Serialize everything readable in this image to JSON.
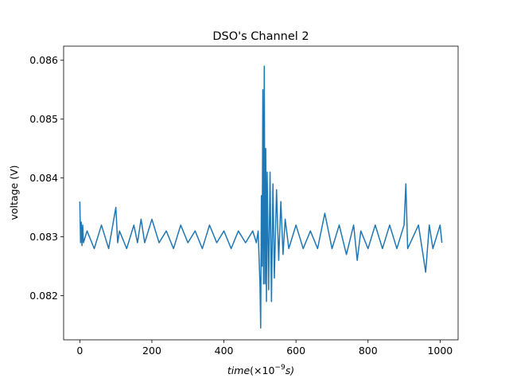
{
  "chart_data": {
    "type": "line",
    "title": "DSO's Channel 2",
    "ylabel": "voltage (V)",
    "xlabel": {
      "main": "time",
      "paren_open": "(×10",
      "exponent": "−9",
      "unit_close": "s)"
    },
    "xlim": [
      -45,
      1050
    ],
    "ylim": [
      0.08125,
      0.08624
    ],
    "x_ticks": [
      {
        "value": 0,
        "label": "0"
      },
      {
        "value": 200,
        "label": "200"
      },
      {
        "value": 400,
        "label": "400"
      },
      {
        "value": 600,
        "label": "600"
      },
      {
        "value": 800,
        "label": "800"
      },
      {
        "value": 1000,
        "label": "1000"
      }
    ],
    "y_ticks": [
      {
        "value": 0.082,
        "label": "0.082"
      },
      {
        "value": 0.083,
        "label": "0.083"
      },
      {
        "value": 0.084,
        "label": "0.084"
      },
      {
        "value": 0.085,
        "label": "0.085"
      },
      {
        "value": 0.086,
        "label": "0.086"
      }
    ],
    "grid": false,
    "series": [
      {
        "color": "#1f77b4",
        "x": [
          0,
          2,
          4,
          6,
          8,
          10,
          20,
          40,
          60,
          80,
          100,
          105,
          110,
          130,
          150,
          160,
          170,
          180,
          200,
          220,
          240,
          260,
          280,
          300,
          320,
          340,
          360,
          380,
          400,
          420,
          440,
          460,
          480,
          490,
          495,
          500,
          502,
          504,
          506,
          508,
          510,
          512,
          514,
          516,
          518,
          520,
          524,
          528,
          532,
          536,
          540,
          546,
          552,
          558,
          564,
          570,
          580,
          600,
          620,
          640,
          660,
          680,
          700,
          720,
          740,
          760,
          770,
          780,
          800,
          820,
          840,
          860,
          880,
          900,
          905,
          910,
          940,
          960,
          970,
          980,
          1000,
          1005
        ],
        "y": [
          0.0836,
          0.0829,
          0.08325,
          0.08285,
          0.0832,
          0.0829,
          0.0831,
          0.0828,
          0.0832,
          0.0828,
          0.0835,
          0.0829,
          0.0831,
          0.0828,
          0.0832,
          0.0829,
          0.0833,
          0.0829,
          0.0833,
          0.0829,
          0.0831,
          0.0828,
          0.0832,
          0.0829,
          0.0831,
          0.0828,
          0.0832,
          0.0829,
          0.0831,
          0.0828,
          0.0831,
          0.0829,
          0.0831,
          0.0829,
          0.0831,
          0.0822,
          0.08145,
          0.0837,
          0.0825,
          0.0855,
          0.0822,
          0.0859,
          0.0822,
          0.0845,
          0.0819,
          0.0841,
          0.0821,
          0.0841,
          0.0819,
          0.0839,
          0.0823,
          0.0838,
          0.0826,
          0.0836,
          0.0827,
          0.0833,
          0.0828,
          0.0832,
          0.0828,
          0.0831,
          0.0828,
          0.0834,
          0.0828,
          0.0832,
          0.0827,
          0.0832,
          0.0826,
          0.0831,
          0.0828,
          0.0832,
          0.0828,
          0.0832,
          0.0828,
          0.0832,
          0.0839,
          0.0828,
          0.0832,
          0.0824,
          0.0832,
          0.0828,
          0.0832,
          0.0829
        ]
      }
    ]
  }
}
